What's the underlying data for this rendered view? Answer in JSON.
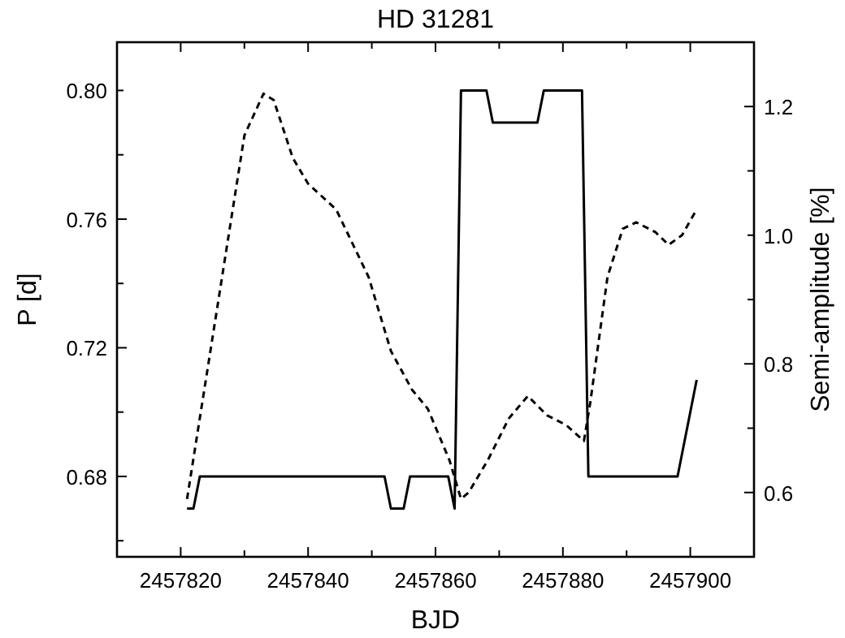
{
  "chart_data": {
    "type": "line",
    "title": "HD 31281",
    "xlabel": "BJD",
    "ylabel": "P [d]",
    "y2label": "Semi-amplitude [%]",
    "xlim": [
      2457810,
      2457910
    ],
    "xticks": [
      2457820,
      {
        "value": 2457830,
        "label": null
      },
      2457840,
      {
        "value": 2457850,
        "label": null
      },
      2457860,
      {
        "value": 2457870,
        "label": null
      },
      2457880,
      {
        "value": 2457890,
        "label": null
      },
      2457900
    ],
    "ylim": [
      0.655,
      0.815
    ],
    "yticks": [
      {
        "value": 0.66,
        "label": null
      },
      0.68,
      {
        "value": 0.7,
        "label": null
      },
      0.72,
      {
        "value": 0.74,
        "label": null
      },
      0.76,
      {
        "value": 0.78,
        "label": null
      },
      {
        "value": 0.8,
        "label": "0.80"
      }
    ],
    "y2lim": [
      0.5,
      1.3
    ],
    "y2ticks": [
      {
        "value": 0.5,
        "label": null
      },
      0.6,
      {
        "value": 0.7,
        "label": null
      },
      0.8,
      {
        "value": 0.9,
        "label": null
      },
      {
        "value": 1.0,
        "label": "1.0"
      },
      {
        "value": 1.1,
        "label": null
      },
      1.2
    ],
    "grid": false,
    "series": [
      {
        "color": "#000000",
        "line_style": "solid",
        "x": [
          2457821,
          2457822,
          2457823,
          2457852,
          2457853,
          2457855,
          2457856,
          2457862,
          2457863,
          2457864,
          2457868,
          2457869,
          2457876,
          2457877,
          2457883,
          2457884,
          2457898,
          2457901
        ],
        "values": [
          0.67,
          0.67,
          0.68,
          0.68,
          0.67,
          0.67,
          0.68,
          0.68,
          0.67,
          0.8,
          0.8,
          0.79,
          0.79,
          0.8,
          0.8,
          0.68,
          0.68,
          0.71
        ]
      },
      {
        "color": "#000000",
        "line_style": "dashed",
        "axis": "y2",
        "x": [
          2457821,
          2457825.7,
          2457830,
          2457833,
          2457834.6,
          2457837.6,
          2457840,
          2457844.4,
          2457849.5,
          2457853,
          2457856.3,
          2457858.8,
          2457862.2,
          2457864,
          2457865.2,
          2457868.2,
          2457871.5,
          2457874.5,
          2457877.5,
          2457880.5,
          2457883.3,
          2457884.3,
          2457887,
          2457889.4,
          2457891.5,
          2457894.5,
          2457896.6,
          2457898.7,
          2457901
        ],
        "values": [
          0.59,
          0.885,
          1.155,
          1.22,
          1.21,
          1.12,
          1.08,
          1.04,
          0.935,
          0.82,
          0.76,
          0.73,
          0.65,
          0.59,
          0.6,
          0.65,
          0.715,
          0.75,
          0.72,
          0.705,
          0.68,
          0.74,
          0.935,
          1.01,
          1.02,
          1.005,
          0.985,
          1.0,
          1.04
        ]
      }
    ]
  }
}
